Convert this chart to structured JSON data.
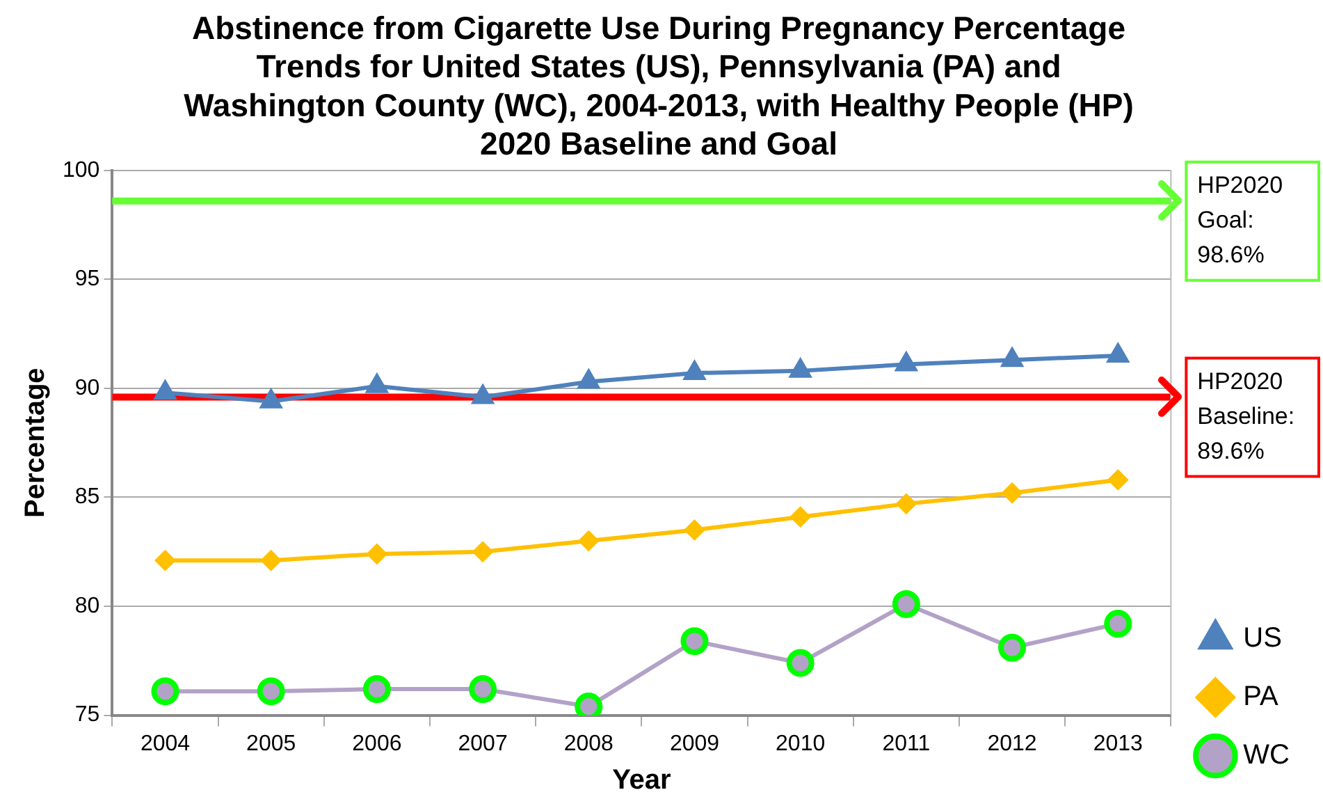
{
  "chart_data": {
    "type": "line",
    "title": "Abstinence from Cigarette Use During Pregnancy Percentage Trends for United States (US), Pennsylvania (PA) and Washington County (WC), 2004-2013, with Healthy People (HP) 2020 Baseline and Goal",
    "xlabel": "Year",
    "ylabel": "Percentage",
    "categories": [
      "2004",
      "2005",
      "2006",
      "2007",
      "2008",
      "2009",
      "2010",
      "2011",
      "2012",
      "2013"
    ],
    "series": [
      {
        "name": "US",
        "color": "#4f81bd",
        "marker": "triangle",
        "values": [
          89.8,
          89.4,
          90.1,
          89.6,
          90.3,
          90.7,
          90.8,
          91.1,
          91.3,
          91.5
        ]
      },
      {
        "name": "PA",
        "color": "#ffc000",
        "marker": "diamond",
        "values": [
          82.1,
          82.1,
          82.4,
          82.5,
          83.0,
          83.5,
          84.1,
          84.7,
          85.2,
          85.8
        ]
      },
      {
        "name": "WC",
        "color": "#b3a2c7",
        "marker": "circle",
        "values": [
          76.1,
          76.1,
          76.2,
          76.2,
          75.4,
          78.4,
          77.4,
          80.1,
          78.1,
          79.2
        ]
      }
    ],
    "ref_lines": [
      {
        "axis": "y",
        "value": 98.6,
        "label": "HP2020 Goal: 98.6%",
        "color": "#66ff33"
      },
      {
        "axis": "y",
        "value": 89.6,
        "label": "HP2020 Baseline: 89.6%",
        "color": "#ff0000"
      }
    ],
    "ylim": [
      75,
      100
    ],
    "yticks": [
      75,
      80,
      85,
      90,
      95,
      100
    ],
    "grid": "y",
    "legend": "right"
  }
}
